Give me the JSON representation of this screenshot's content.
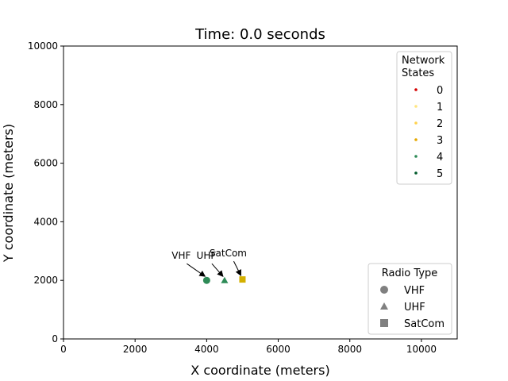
{
  "chart_data": {
    "type": "scatter",
    "title": "Time: 0.0 seconds",
    "xlabel": "X coordinate (meters)",
    "ylabel": "Y coordinate (meters)",
    "xlim": [
      0,
      11000
    ],
    "ylim": [
      0,
      10000
    ],
    "xticks": [
      "0",
      "2000",
      "4000",
      "6000",
      "8000",
      "10000"
    ],
    "yticks": [
      "0",
      "2000",
      "4000",
      "6000",
      "8000",
      "10000"
    ],
    "grid": false,
    "points": [
      {
        "label": "VHF",
        "x": 4000,
        "y": 2000,
        "marker": "circle",
        "color": "#2e8b57"
      },
      {
        "label": "UHF",
        "x": 4500,
        "y": 2000,
        "marker": "triangle",
        "color": "#2e8b57"
      },
      {
        "label": "SatCom",
        "x": 5000,
        "y": 2030,
        "marker": "square",
        "color": "#d4b000"
      }
    ],
    "legends": [
      {
        "title": [
          "Network",
          "States"
        ],
        "placement": "top-right",
        "entries": [
          {
            "label": "0",
            "color": "#d40000"
          },
          {
            "label": "1",
            "color": "#ffe680"
          },
          {
            "label": "2",
            "color": "#ffd24d"
          },
          {
            "label": "3",
            "color": "#e6a800"
          },
          {
            "label": "4",
            "color": "#2e8b57"
          },
          {
            "label": "5",
            "color": "#005a2b"
          }
        ]
      },
      {
        "title": [
          "Radio Type"
        ],
        "placement": "lower-right",
        "entries": [
          {
            "label": "VHF",
            "marker": "circle",
            "color": "#808080"
          },
          {
            "label": "UHF",
            "marker": "triangle",
            "color": "#808080"
          },
          {
            "label": "SatCom",
            "marker": "square",
            "color": "#808080"
          }
        ]
      }
    ]
  }
}
